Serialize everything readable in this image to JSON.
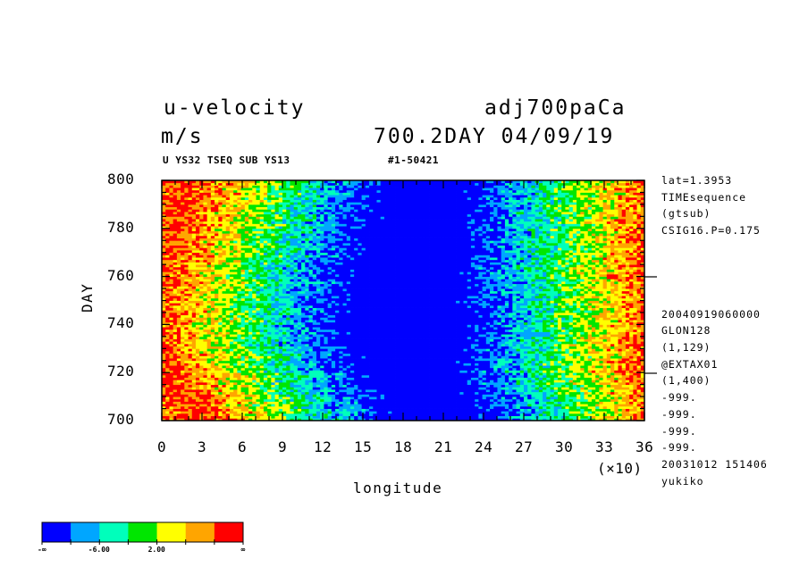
{
  "header": {
    "var_name": "u-velocity",
    "units": "m/s",
    "run_name": "adj700paCa",
    "date_line": "700.2DAY 04/09/19",
    "sub_left": "U YS32 TSEQ SUB YS13",
    "sub_mid": "#1-50421"
  },
  "side_info": [
    "lat=1.3953",
    "TIMEsequence",
    "(gtsub)",
    "CSIG16.P=0.175",
    "",
    "",
    "",
    "",
    "20040919060000",
    "GLON128",
    "(1,129)",
    "@EXTAX01",
    "(1,400)",
    "-999.",
    "-999.",
    "-999.",
    "-999.",
    "20031012 151406",
    "yukiko"
  ],
  "chart_data": {
    "type": "heatmap",
    "xlabel": "longitude",
    "ylabel": "DAY",
    "x_multiplier_label": "(×10)",
    "xlim": [
      0,
      36
    ],
    "ylim": [
      700,
      800
    ],
    "x_ticks": [
      "0",
      "3",
      "6",
      "9",
      "12",
      "15",
      "18",
      "21",
      "24",
      "27",
      "30",
      "33",
      "36"
    ],
    "y_ticks": [
      "700",
      "720",
      "740",
      "760",
      "780",
      "800"
    ],
    "colorbar": {
      "colors": [
        "#0000ff",
        "#00a6ff",
        "#00ffbb",
        "#00e600",
        "#ffff00",
        "#ffa500",
        "#ff0000"
      ],
      "labels": [
        "-∞",
        "-6.00",
        "2.00",
        "∞"
      ]
    },
    "description_bands": [
      {
        "day": 700,
        "blue_center": 20.5,
        "blue_half_width": 5.0
      },
      {
        "day": 720,
        "blue_center": 18.5,
        "blue_half_width": 5.5
      },
      {
        "day": 740,
        "blue_center": 18.0,
        "blue_half_width": 6.5
      },
      {
        "day": 760,
        "blue_center": 18.5,
        "blue_half_width": 6.0
      },
      {
        "day": 780,
        "blue_center": 19.0,
        "blue_half_width": 5.5
      },
      {
        "day": 800,
        "blue_center": 19.5,
        "blue_half_width": 5.0
      }
    ]
  }
}
